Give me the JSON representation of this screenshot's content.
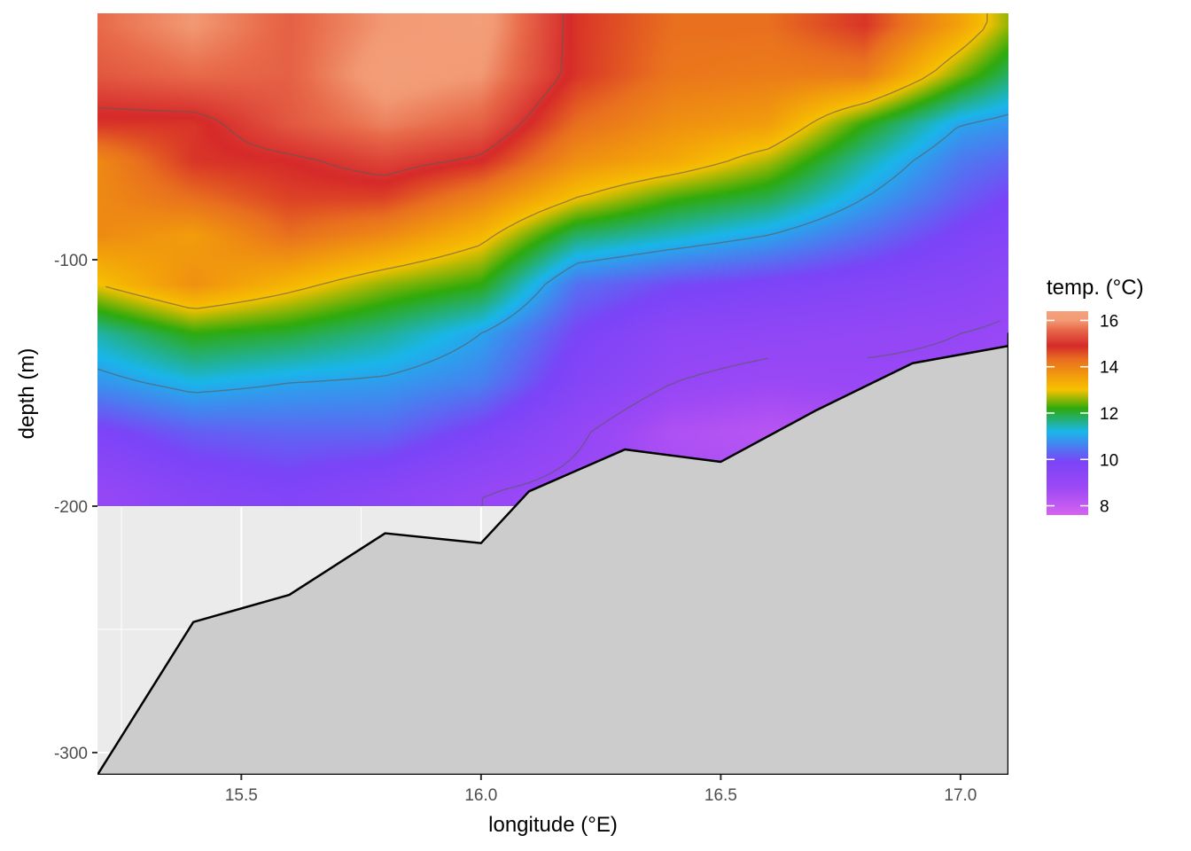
{
  "chart_data": {
    "type": "heatmap",
    "title": "",
    "xlabel": "longitude (°E)",
    "ylabel": "depth (m)",
    "xlim": [
      15.2,
      17.1
    ],
    "ylim": [
      -309,
      0
    ],
    "x_ticks": [
      15.5,
      16.0,
      16.5,
      17.0
    ],
    "x_tick_labels": [
      "15.5",
      "16.0",
      "16.5",
      "17.0"
    ],
    "y_ticks": [
      -100,
      -200,
      -300
    ],
    "y_tick_labels": [
      "-100",
      "-200",
      "-300"
    ],
    "grid": true,
    "legend": {
      "title": "temp. (°C)",
      "position": "right",
      "range": [
        7.6,
        16.4
      ],
      "ticks": [
        16,
        14,
        12,
        10,
        8
      ],
      "tick_labels": [
        "16",
        "14",
        "12",
        "10",
        "8"
      ],
      "colors": [
        "#f5a27d",
        "#d62a2a",
        "#e9701f",
        "#f7c100",
        "#2eaa0c",
        "#1ab6ea",
        "#7b44f7",
        "#d563f0"
      ]
    },
    "temperature_field": {
      "depth_range": [
        -200,
        0
      ],
      "lon_grid": [
        15.2,
        15.4,
        15.6,
        15.8,
        16.0,
        16.2,
        16.4,
        16.6,
        16.8,
        17.0,
        17.1
      ],
      "depth_grid": [
        -5,
        -25,
        -45,
        -60,
        -75,
        -90,
        -110,
        -130,
        -150,
        -170,
        -195
      ],
      "values": [
        [
          15.6,
          16.0,
          15.5,
          16.0,
          16.2,
          14.8,
          14.3,
          14.3,
          14.8,
          13.5,
          12.6
        ],
        [
          15.4,
          15.6,
          15.5,
          16.2,
          16.0,
          14.8,
          14.2,
          14.1,
          14.1,
          12.5,
          11.8
        ],
        [
          14.8,
          14.8,
          15.4,
          15.8,
          15.5,
          14.3,
          13.8,
          13.6,
          12.2,
          11.0,
          10.8
        ],
        [
          13.9,
          14.8,
          14.9,
          15.2,
          14.9,
          13.8,
          13.4,
          12.7,
          11.5,
          10.5,
          10.3
        ],
        [
          13.9,
          14.3,
          14.7,
          14.7,
          14.0,
          13.0,
          12.3,
          11.9,
          11.0,
          10.2,
          9.9
        ],
        [
          13.9,
          13.6,
          14.3,
          13.9,
          13.2,
          11.8,
          11.4,
          11.0,
          10.4,
          9.8,
          9.6
        ],
        [
          13.0,
          13.8,
          13.2,
          12.6,
          12.2,
          10.4,
          10.0,
          9.8,
          9.6,
          9.4,
          9.2
        ],
        [
          11.5,
          12.2,
          12.0,
          11.6,
          11.0,
          9.9,
          9.3,
          9.2,
          9.1,
          9.0,
          8.9
        ],
        [
          10.8,
          11.2,
          11.0,
          10.9,
          10.6,
          9.6,
          9.0,
          8.8,
          8.9,
          8.9,
          8.8
        ],
        [
          9.8,
          10.2,
          10.3,
          10.3,
          9.8,
          9.1,
          8.4,
          8.2,
          8.4,
          8.6,
          8.6
        ],
        [
          9.0,
          9.5,
          9.7,
          9.4,
          9.0,
          8.8,
          8.6,
          8.5,
          8.6,
          8.7,
          8.7
        ]
      ]
    },
    "bottom_profile": {
      "lon": [
        15.2,
        15.4,
        15.6,
        15.8,
        16.0,
        16.1,
        16.3,
        16.5,
        16.7,
        16.9,
        17.1,
        17.1
      ],
      "depth": [
        -309,
        -247,
        -236,
        -211,
        -215,
        -194,
        -177,
        -182,
        -161,
        -142,
        -135,
        -130
      ]
    },
    "colors": {
      "panel_background": "#ebebeb",
      "gridline": "#ffffff",
      "bottom_fill": "#cccccc",
      "bottom_outline": "#000000",
      "contour": "#5a5a5a"
    }
  }
}
